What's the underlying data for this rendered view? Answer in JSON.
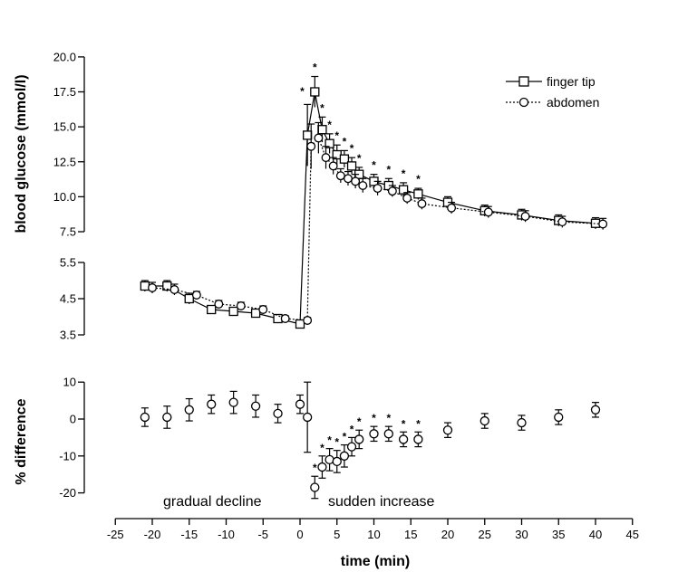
{
  "chart_data": [
    {
      "type": "line",
      "ylabel": "blood glucose (mmol/l)",
      "axis_break_y": [
        5.5,
        7.5
      ],
      "ylim_lower": [
        3.5,
        5.5
      ],
      "ylim_upper": [
        7.5,
        20.0
      ],
      "yticks": [
        "3.5",
        "4.5",
        "5.5",
        "7.5",
        "10.0",
        "12.5",
        "15.0",
        "17.5",
        "20.0"
      ],
      "legend": {
        "position": "top-right",
        "entries": [
          "finger tip",
          "abdomen"
        ]
      },
      "series": [
        {
          "name": "finger tip",
          "marker": "square",
          "line": "solid",
          "x": [
            -21,
            -18,
            -15,
            -12,
            -9,
            -6,
            -3,
            0,
            1,
            2,
            3,
            4,
            5,
            6,
            7,
            8,
            10,
            12,
            14,
            16,
            20,
            25,
            30,
            35,
            40
          ],
          "y": [
            4.85,
            4.85,
            4.5,
            4.2,
            4.15,
            4.1,
            3.95,
            3.8,
            14.4,
            17.5,
            14.8,
            13.8,
            13.0,
            12.7,
            12.2,
            11.6,
            11.1,
            10.8,
            10.5,
            10.2,
            9.6,
            9.0,
            8.7,
            8.3,
            8.1
          ],
          "err": [
            0.15,
            0.15,
            0.15,
            0.1,
            0.1,
            0.1,
            0.08,
            0.08,
            2.2,
            1.1,
            0.9,
            0.7,
            0.7,
            0.6,
            0.6,
            0.5,
            0.5,
            0.5,
            0.5,
            0.4,
            0.4,
            0.4,
            0.4,
            0.4,
            0.4
          ]
        },
        {
          "name": "abdomen",
          "marker": "circle",
          "line": "dotted",
          "x": [
            -20,
            -17,
            -14,
            -11,
            -8,
            -5,
            -2,
            1,
            1.5,
            2.5,
            3.5,
            4.5,
            5.5,
            6.5,
            7.5,
            8.5,
            10.5,
            12.5,
            14.5,
            16.5,
            20.5,
            25.5,
            30.5,
            35.5,
            41
          ],
          "y": [
            4.8,
            4.75,
            4.6,
            4.35,
            4.3,
            4.2,
            3.95,
            3.9,
            13.6,
            14.2,
            12.8,
            12.2,
            11.5,
            11.3,
            11.1,
            10.8,
            10.6,
            10.4,
            9.9,
            9.5,
            9.2,
            8.9,
            8.6,
            8.2,
            8.05
          ],
          "err": [
            0.15,
            0.15,
            0.1,
            0.1,
            0.1,
            0.1,
            0.08,
            0.08,
            1.6,
            1.1,
            0.8,
            0.6,
            0.5,
            0.5,
            0.5,
            0.5,
            0.5,
            0.4,
            0.4,
            0.4,
            0.4,
            0.4,
            0.4,
            0.4,
            0.4
          ]
        }
      ],
      "significance_x": [
        0.3,
        2,
        3,
        4,
        5,
        6,
        7,
        8,
        10,
        12,
        14,
        16
      ]
    },
    {
      "type": "scatter",
      "xlabel": "time (min)",
      "ylabel": "% difference",
      "xlim": [
        -25,
        45
      ],
      "ylim": [
        -20,
        10
      ],
      "xticks": [
        "-25",
        "-20",
        "-15",
        "-10",
        "-5",
        "0",
        "5",
        "10",
        "15",
        "20",
        "25",
        "30",
        "35",
        "40",
        "45"
      ],
      "yticks": [
        "10",
        "0",
        "-10",
        "-20"
      ],
      "series": [
        {
          "marker": "circle",
          "x": [
            -21,
            -18,
            -15,
            -12,
            -9,
            -6,
            -3,
            0,
            1,
            2,
            3,
            4,
            5,
            6,
            7,
            8,
            10,
            12,
            14,
            16,
            20,
            25,
            30,
            35,
            40
          ],
          "y": [
            0.5,
            0.5,
            2.5,
            4.0,
            4.5,
            3.5,
            1.5,
            4.0,
            0.5,
            -18.5,
            -13.0,
            -11.0,
            -11.5,
            -10.0,
            -7.5,
            -5.5,
            -4.0,
            -4.0,
            -5.5,
            -5.5,
            -3.0,
            -0.5,
            -1.0,
            0.5,
            2.5
          ],
          "err": [
            2.5,
            3.0,
            3.0,
            2.5,
            3.0,
            3.0,
            2.5,
            2.5,
            9.5,
            3.0,
            3.0,
            3.0,
            3.0,
            3.0,
            2.5,
            2.5,
            2.0,
            2.0,
            2.0,
            2.0,
            2.0,
            2.0,
            2.0,
            2.0,
            2.0
          ]
        }
      ],
      "significance_x": [
        2,
        3,
        4,
        5,
        6,
        7,
        8,
        10,
        12,
        14,
        16
      ],
      "annotations": [
        "gradual decline",
        "sudden increase"
      ]
    }
  ]
}
